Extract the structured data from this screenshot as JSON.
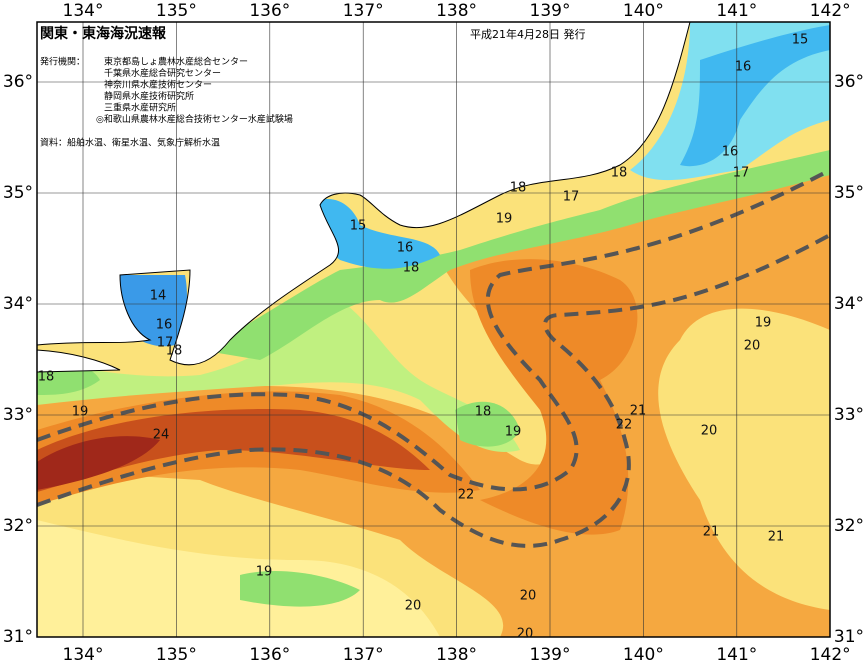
{
  "title": "関東・東海海況速報",
  "issue_date": "平成21年4月28日 発行",
  "issuers_label": "発行機関：",
  "issuers": [
    "東京都島しょ農林水産総合センター",
    "千葉県水産総合研究センター",
    "神奈川県水産技術センター",
    "静岡県水産技術研究所",
    "三重県水産研究所",
    "◎和歌山県農林水産総合技術センター水産試験場"
  ],
  "source": "資料：船舶水温、衛星水温、気象庁解析水温",
  "lon_ticks": [
    {
      "value": 134,
      "label": "134°"
    },
    {
      "value": 135,
      "label": "135°"
    },
    {
      "value": 136,
      "label": "136°"
    },
    {
      "value": 137,
      "label": "137°"
    },
    {
      "value": 138,
      "label": "138°"
    },
    {
      "value": 139,
      "label": "139°"
    },
    {
      "value": 140,
      "label": "140°"
    },
    {
      "value": 141,
      "label": "141°"
    },
    {
      "value": 142,
      "label": "142°"
    }
  ],
  "lat_ticks": [
    {
      "value": 36,
      "label": "36°"
    },
    {
      "value": 35,
      "label": "35°"
    },
    {
      "value": 34,
      "label": "34°"
    },
    {
      "value": 33,
      "label": "33°"
    },
    {
      "value": 32,
      "label": "32°"
    },
    {
      "value": 31,
      "label": "31°"
    }
  ],
  "contour_labels": [
    15,
    16,
    16,
    17,
    18,
    18,
    17,
    19,
    15,
    16,
    18,
    14,
    16,
    17,
    18,
    18,
    19,
    24,
    19,
    20,
    21,
    22,
    18,
    19,
    20,
    22,
    21,
    21,
    19,
    20,
    20,
    20
  ]
}
